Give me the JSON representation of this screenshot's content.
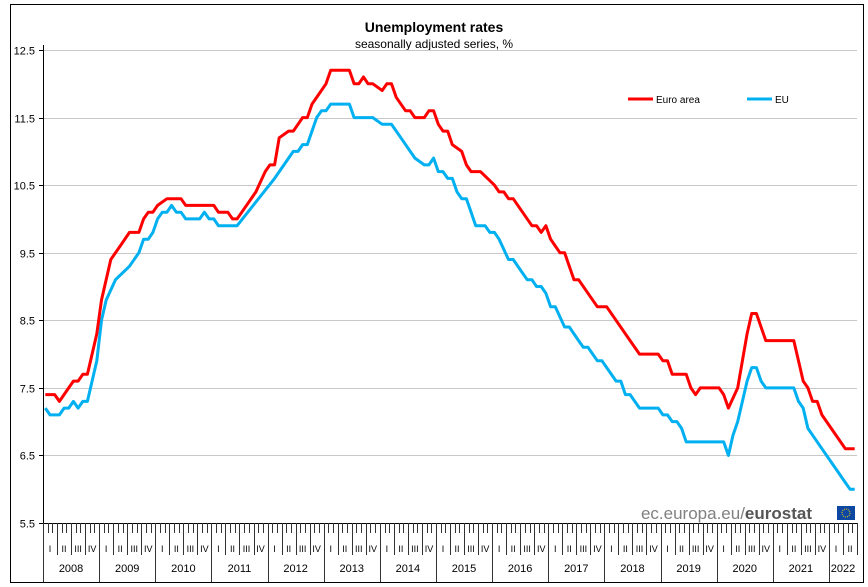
{
  "chart_data": {
    "type": "line",
    "title": "Unemployment rates",
    "subtitle": "seasonally adjusted series, %",
    "xlabel": "",
    "ylabel": "",
    "x_unit": "months since January 2008 (monthly, Jan 2008 - Jun 2022)",
    "months_total": 174,
    "ylim": [
      5.5,
      12.5
    ],
    "yticks": [
      "5.5",
      "6.5",
      "7.5",
      "8.5",
      "9.5",
      "10.5",
      "11.5",
      "12.5"
    ],
    "grid": true,
    "legend_position": "top-right",
    "years": [
      "2008",
      "2009",
      "2010",
      "2011",
      "2012",
      "2013",
      "2014",
      "2015",
      "2016",
      "2017",
      "2018",
      "2019",
      "2020",
      "2021",
      "2022"
    ],
    "quarters": [
      "I",
      "II",
      "III",
      "IV"
    ],
    "series": [
      {
        "name": "Euro area",
        "color": "#ff0000",
        "points": [
          [
            0,
            7.4
          ],
          [
            2,
            7.4
          ],
          [
            3,
            7.3
          ],
          [
            5,
            7.5
          ],
          [
            6,
            7.6
          ],
          [
            7,
            7.6
          ],
          [
            8,
            7.7
          ],
          [
            9,
            7.7
          ],
          [
            10,
            8.0
          ],
          [
            11,
            8.3
          ],
          [
            12,
            8.8
          ],
          [
            14,
            9.4
          ],
          [
            16,
            9.6
          ],
          [
            18,
            9.8
          ],
          [
            20,
            9.8
          ],
          [
            21,
            10.0
          ],
          [
            22,
            10.1
          ],
          [
            23,
            10.1
          ],
          [
            24,
            10.2
          ],
          [
            26,
            10.3
          ],
          [
            29,
            10.3
          ],
          [
            30,
            10.2
          ],
          [
            36,
            10.2
          ],
          [
            37,
            10.1
          ],
          [
            39,
            10.1
          ],
          [
            40,
            10.0
          ],
          [
            41,
            10.0
          ],
          [
            42,
            10.1
          ],
          [
            45,
            10.4
          ],
          [
            47,
            10.7
          ],
          [
            48,
            10.8
          ],
          [
            49,
            10.8
          ],
          [
            50,
            11.2
          ],
          [
            52,
            11.3
          ],
          [
            53,
            11.3
          ],
          [
            54,
            11.4
          ],
          [
            55,
            11.5
          ],
          [
            56,
            11.5
          ],
          [
            57,
            11.7
          ],
          [
            59,
            11.9
          ],
          [
            60,
            12.0
          ],
          [
            61,
            12.2
          ],
          [
            65,
            12.2
          ],
          [
            66,
            12.0
          ],
          [
            67,
            12.0
          ],
          [
            68,
            12.1
          ],
          [
            69,
            12.0
          ],
          [
            70,
            12.0
          ],
          [
            72,
            11.9
          ],
          [
            73,
            12.0
          ],
          [
            74,
            12.0
          ],
          [
            75,
            11.8
          ],
          [
            77,
            11.6
          ],
          [
            78,
            11.6
          ],
          [
            79,
            11.5
          ],
          [
            81,
            11.5
          ],
          [
            82,
            11.6
          ],
          [
            83,
            11.6
          ],
          [
            84,
            11.4
          ],
          [
            85,
            11.3
          ],
          [
            86,
            11.3
          ],
          [
            87,
            11.1
          ],
          [
            89,
            11.0
          ],
          [
            90,
            10.8
          ],
          [
            91,
            10.7
          ],
          [
            93,
            10.7
          ],
          [
            96,
            10.5
          ],
          [
            97,
            10.4
          ],
          [
            98,
            10.4
          ],
          [
            99,
            10.3
          ],
          [
            100,
            10.3
          ],
          [
            104,
            9.9
          ],
          [
            105,
            9.9
          ],
          [
            106,
            9.8
          ],
          [
            107,
            9.9
          ],
          [
            108,
            9.7
          ],
          [
            109,
            9.6
          ],
          [
            110,
            9.5
          ],
          [
            111,
            9.5
          ],
          [
            112,
            9.3
          ],
          [
            113,
            9.1
          ],
          [
            114,
            9.1
          ],
          [
            116,
            8.9
          ],
          [
            118,
            8.7
          ],
          [
            120,
            8.7
          ],
          [
            125,
            8.2
          ],
          [
            127,
            8.0
          ],
          [
            131,
            8.0
          ],
          [
            132,
            7.9
          ],
          [
            133,
            7.9
          ],
          [
            134,
            7.7
          ],
          [
            137,
            7.7
          ],
          [
            138,
            7.5
          ],
          [
            139,
            7.4
          ],
          [
            140,
            7.5
          ],
          [
            144,
            7.5
          ],
          [
            145,
            7.4
          ],
          [
            146,
            7.2
          ],
          [
            148,
            7.5
          ],
          [
            149,
            7.9
          ],
          [
            150,
            8.3
          ],
          [
            151,
            8.6
          ],
          [
            152,
            8.6
          ],
          [
            154,
            8.2
          ],
          [
            160,
            8.2
          ],
          [
            161,
            7.9
          ],
          [
            162,
            7.6
          ],
          [
            163,
            7.5
          ],
          [
            164,
            7.3
          ],
          [
            165,
            7.3
          ],
          [
            166,
            7.1
          ],
          [
            170,
            6.7
          ],
          [
            171,
            6.6
          ],
          [
            173,
            6.6
          ]
        ]
      },
      {
        "name": "EU",
        "color": "#00b0f0",
        "points": [
          [
            0,
            7.2
          ],
          [
            1,
            7.1
          ],
          [
            3,
            7.1
          ],
          [
            4,
            7.2
          ],
          [
            5,
            7.2
          ],
          [
            6,
            7.3
          ],
          [
            7,
            7.2
          ],
          [
            8,
            7.3
          ],
          [
            9,
            7.3
          ],
          [
            11,
            7.9
          ],
          [
            12,
            8.5
          ],
          [
            13,
            8.8
          ],
          [
            15,
            9.1
          ],
          [
            18,
            9.3
          ],
          [
            20,
            9.5
          ],
          [
            21,
            9.7
          ],
          [
            22,
            9.7
          ],
          [
            23,
            9.8
          ],
          [
            24,
            10.0
          ],
          [
            25,
            10.1
          ],
          [
            26,
            10.1
          ],
          [
            27,
            10.2
          ],
          [
            28,
            10.1
          ],
          [
            29,
            10.1
          ],
          [
            30,
            10.0
          ],
          [
            33,
            10.0
          ],
          [
            34,
            10.1
          ],
          [
            35,
            10.0
          ],
          [
            36,
            10.0
          ],
          [
            37,
            9.9
          ],
          [
            41,
            9.9
          ],
          [
            49,
            10.6
          ],
          [
            52,
            10.9
          ],
          [
            53,
            11.0
          ],
          [
            54,
            11.0
          ],
          [
            55,
            11.1
          ],
          [
            56,
            11.1
          ],
          [
            57,
            11.3
          ],
          [
            58,
            11.5
          ],
          [
            59,
            11.6
          ],
          [
            60,
            11.6
          ],
          [
            61,
            11.7
          ],
          [
            65,
            11.7
          ],
          [
            66,
            11.5
          ],
          [
            70,
            11.5
          ],
          [
            72,
            11.4
          ],
          [
            74,
            11.4
          ],
          [
            76,
            11.2
          ],
          [
            79,
            10.9
          ],
          [
            81,
            10.8
          ],
          [
            82,
            10.8
          ],
          [
            83,
            10.9
          ],
          [
            84,
            10.7
          ],
          [
            85,
            10.7
          ],
          [
            86,
            10.6
          ],
          [
            87,
            10.6
          ],
          [
            88,
            10.4
          ],
          [
            89,
            10.3
          ],
          [
            90,
            10.3
          ],
          [
            91,
            10.1
          ],
          [
            92,
            9.9
          ],
          [
            94,
            9.9
          ],
          [
            95,
            9.8
          ],
          [
            96,
            9.8
          ],
          [
            97,
            9.7
          ],
          [
            99,
            9.4
          ],
          [
            100,
            9.4
          ],
          [
            102,
            9.2
          ],
          [
            103,
            9.1
          ],
          [
            104,
            9.1
          ],
          [
            105,
            9.0
          ],
          [
            106,
            9.0
          ],
          [
            107,
            8.9
          ],
          [
            108,
            8.7
          ],
          [
            109,
            8.7
          ],
          [
            111,
            8.4
          ],
          [
            112,
            8.4
          ],
          [
            114,
            8.2
          ],
          [
            115,
            8.1
          ],
          [
            116,
            8.1
          ],
          [
            117,
            8.0
          ],
          [
            118,
            7.9
          ],
          [
            119,
            7.9
          ],
          [
            120,
            7.8
          ],
          [
            122,
            7.6
          ],
          [
            123,
            7.6
          ],
          [
            124,
            7.4
          ],
          [
            125,
            7.4
          ],
          [
            127,
            7.2
          ],
          [
            131,
            7.2
          ],
          [
            132,
            7.1
          ],
          [
            133,
            7.1
          ],
          [
            134,
            7.0
          ],
          [
            135,
            7.0
          ],
          [
            136,
            6.9
          ],
          [
            137,
            6.7
          ],
          [
            145,
            6.7
          ],
          [
            146,
            6.5
          ],
          [
            147,
            6.8
          ],
          [
            148,
            7.0
          ],
          [
            150,
            7.6
          ],
          [
            151,
            7.8
          ],
          [
            152,
            7.8
          ],
          [
            153,
            7.6
          ],
          [
            154,
            7.5
          ],
          [
            160,
            7.5
          ],
          [
            161,
            7.3
          ],
          [
            162,
            7.2
          ],
          [
            163,
            6.9
          ],
          [
            164,
            6.8
          ],
          [
            166,
            6.6
          ],
          [
            169,
            6.3
          ],
          [
            171,
            6.1
          ],
          [
            172,
            6.0
          ],
          [
            173,
            6.0
          ]
        ]
      }
    ]
  },
  "source": {
    "prefix": "ec.europa.eu/",
    "brand": "eurostat"
  }
}
